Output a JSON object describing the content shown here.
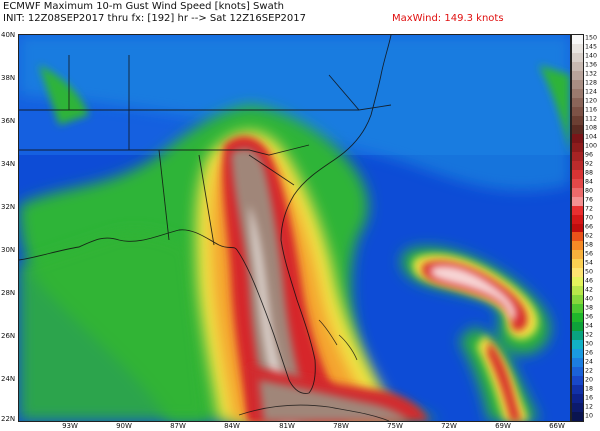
{
  "header": {
    "title": "ECMWF Maximum 10-m Gust Wind Speed [knots] Swath",
    "init": "INIT: 12Z08SEP2017 thru fx: [192] hr --> Sat 12Z16SEP2017",
    "maxwind": "MaxWind: 149.3 knots"
  },
  "axes": {
    "lat_labels": [
      "40N",
      "38N",
      "36N",
      "34N",
      "32N",
      "30N",
      "28N",
      "26N",
      "24N",
      "22N"
    ],
    "lon_labels": [
      "93W",
      "90W",
      "87W",
      "84W",
      "81W",
      "78W",
      "75W",
      "72W",
      "69W",
      "66W"
    ]
  },
  "colorbar": {
    "labels": [
      "150",
      "145",
      "140",
      "136",
      "132",
      "128",
      "124",
      "120",
      "116",
      "112",
      "108",
      "104",
      "100",
      "96",
      "92",
      "88",
      "84",
      "80",
      "76",
      "72",
      "70",
      "66",
      "62",
      "58",
      "56",
      "54",
      "50",
      "46",
      "42",
      "40",
      "38",
      "36",
      "34",
      "32",
      "30",
      "26",
      "24",
      "22",
      "20",
      "18",
      "16",
      "12",
      "10"
    ],
    "colors": [
      "#f8f8f8",
      "#e8e4e0",
      "#d8cfc9",
      "#c8b9b1",
      "#b9a49b",
      "#a98e83",
      "#9b7a6e",
      "#8b6559",
      "#7d5246",
      "#6c3f33",
      "#5b2c23",
      "#7a1518",
      "#8e1c1c",
      "#a62424",
      "#bb2c2c",
      "#d73434",
      "#e34848",
      "#ec6a6a",
      "#f39191",
      "#e83030",
      "#d41818",
      "#c00d0d",
      "#e8531a",
      "#f48a26",
      "#f8b13c",
      "#fbd052",
      "#fde471",
      "#e4f35c",
      "#b8e64a",
      "#86d73c",
      "#4ec831",
      "#1fb62b",
      "#0ea13a",
      "#0aa380",
      "#12b1c5",
      "#1a9ae0",
      "#1c7ee0",
      "#1b62d8",
      "#1848c9",
      "#1131a8",
      "#0d228a",
      "#0c1a6c",
      "#0a1450"
    ]
  },
  "watermark": "wx"
}
